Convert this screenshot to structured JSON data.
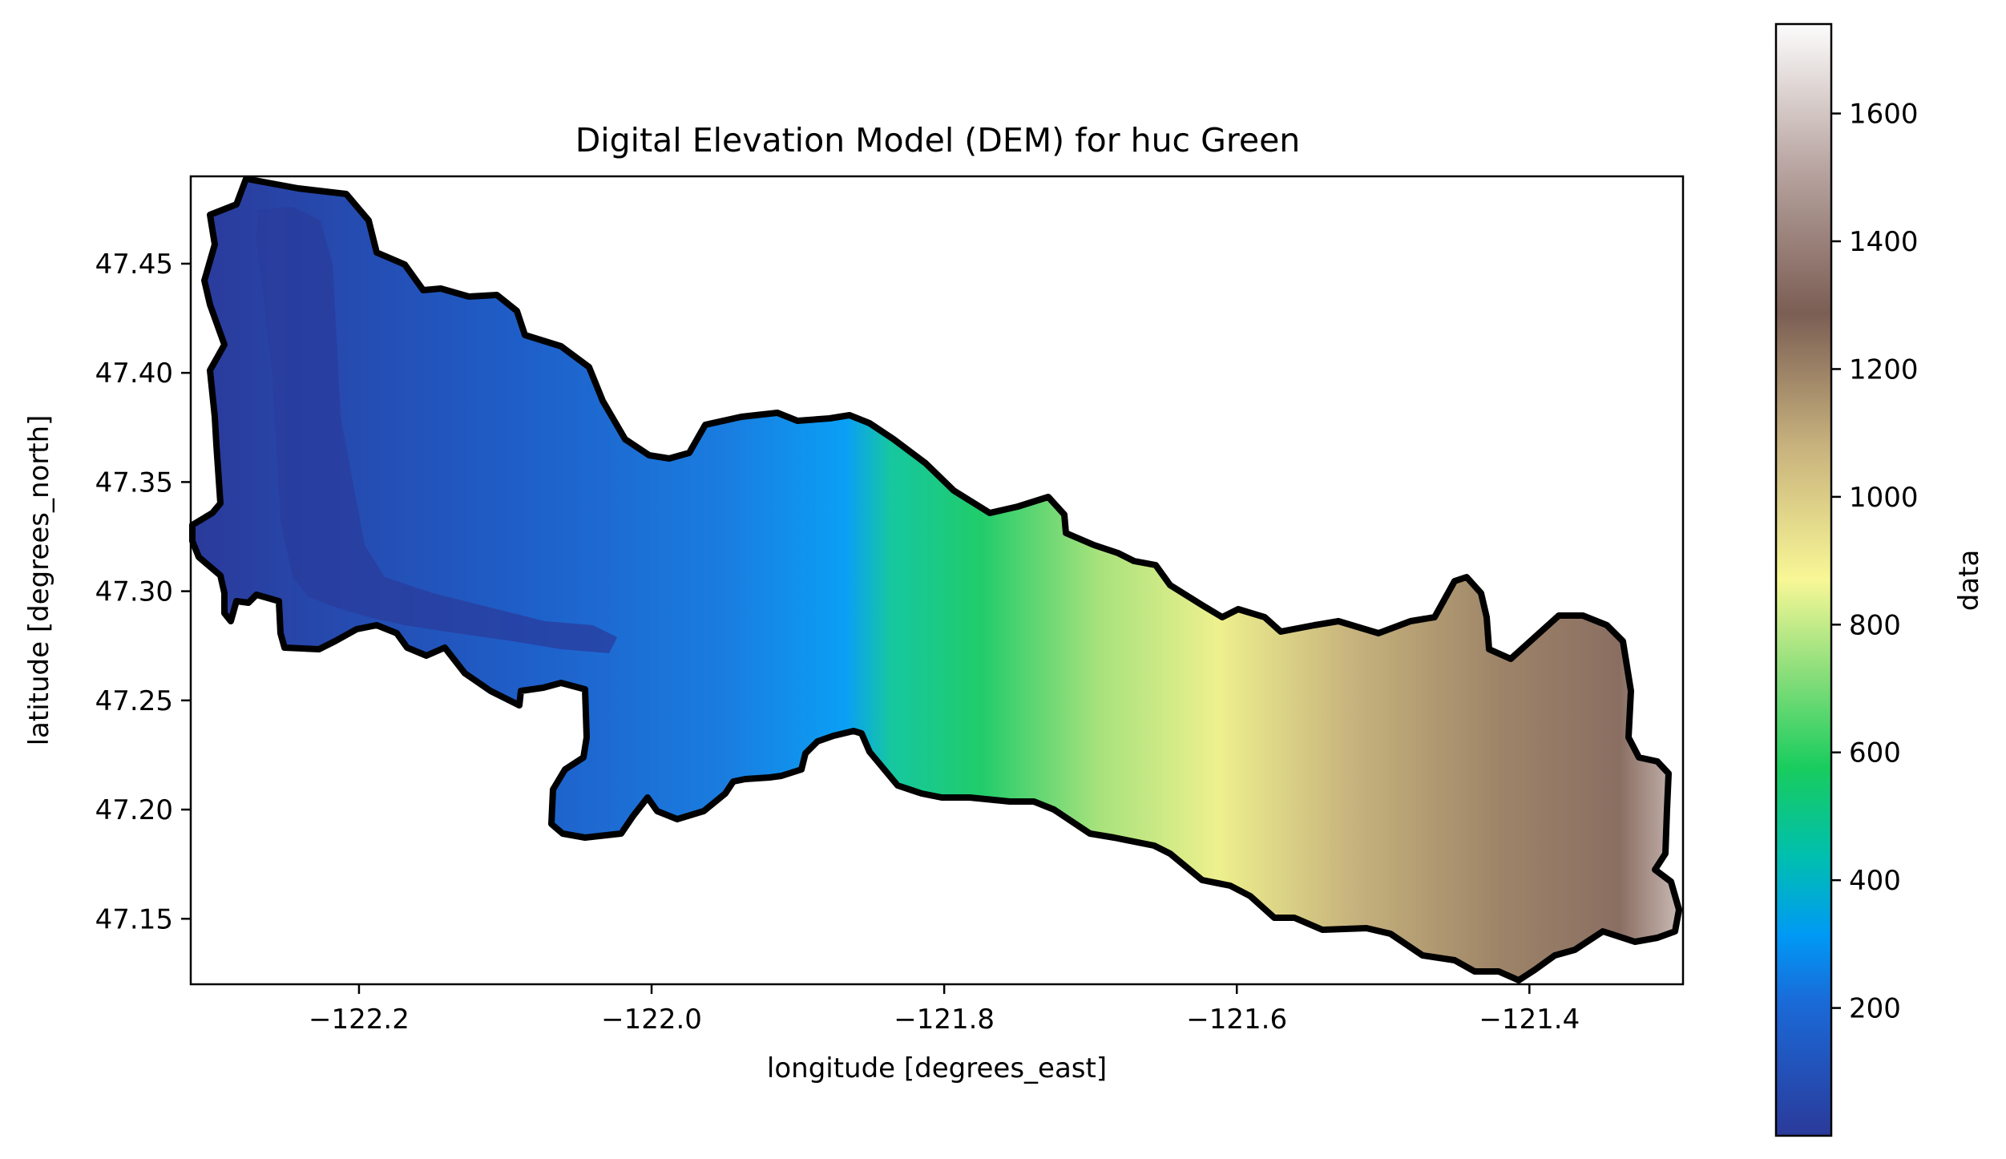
{
  "chart_data": {
    "type": "heatmap",
    "title": "Digital Elevation Model (DEM) for huc Green",
    "xlabel": "longitude [degrees_east]",
    "ylabel": "latitude [degrees_north]",
    "xlim": [
      -122.315,
      -121.295
    ],
    "ylim": [
      47.12,
      47.49
    ],
    "x_ticks": [
      -122.2,
      -122.0,
      -121.8,
      -121.6,
      -121.4
    ],
    "x_tick_labels": [
      "−122.2",
      "−122.0",
      "−121.8",
      "−121.6",
      "−121.4"
    ],
    "y_ticks": [
      47.15,
      47.2,
      47.25,
      47.3,
      47.35,
      47.4,
      47.45
    ],
    "y_tick_labels": [
      "47.15",
      "47.20",
      "47.25",
      "47.30",
      "47.35",
      "47.40",
      "47.45"
    ],
    "grid": false,
    "colormap": "terrain",
    "colorbar": {
      "label": "data",
      "range": [
        0,
        1740
      ],
      "ticks": [
        200,
        400,
        600,
        800,
        1000,
        1200,
        1400,
        1600
      ],
      "tick_labels": [
        "200",
        "400",
        "600",
        "800",
        "1000",
        "1200",
        "1400",
        "1600"
      ]
    },
    "colors": {
      "deep_blue": "#2b3a9a",
      "blue": "#1c6fd6",
      "cyan": "#0a9dfb",
      "green": "#0fcf6a",
      "yellow": "#f4f291",
      "tan": "#b89e72",
      "brown": "#7f5f55",
      "white": "#fcfcfc",
      "boundary": "#000000"
    }
  }
}
